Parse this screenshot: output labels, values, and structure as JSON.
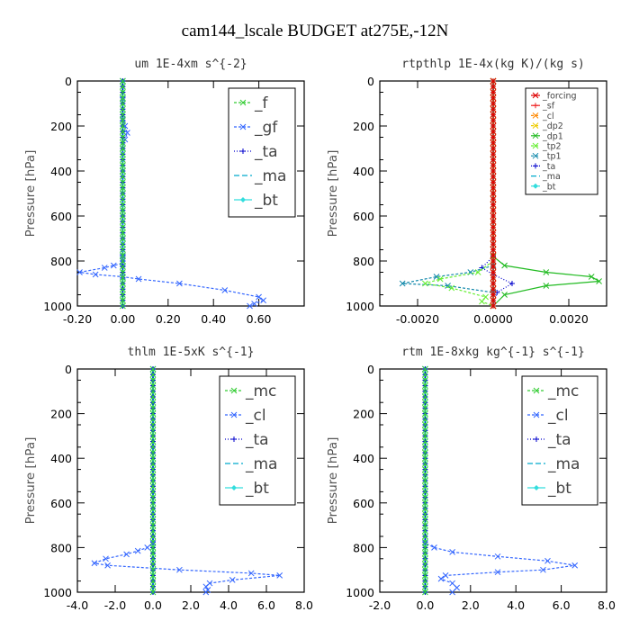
{
  "figure": {
    "title": "cam144_lscale  BUDGET at275E,-12N"
  },
  "chart_data": [
    {
      "type": "line",
      "title": "um  1E-4xm s^{-2}",
      "xlabel": "",
      "ylabel": "Pressure [hPa]",
      "xlim": [
        -0.2,
        0.8
      ],
      "ylim": [
        1000,
        0
      ],
      "xticks": [
        "-0.20",
        "0.00",
        "0.20",
        "0.40",
        "0.60"
      ],
      "xtick_values": [
        -0.2,
        0.0,
        0.2,
        0.4,
        0.6
      ],
      "yticks": [
        "0",
        "200",
        "400",
        "600",
        "800",
        "1000"
      ],
      "ytick_values": [
        0,
        200,
        400,
        600,
        800,
        1000
      ],
      "grid": false,
      "legend": "top-right",
      "legend_style": "big",
      "legend_width": 74,
      "series": [
        {
          "name": "_f",
          "color": "#33cc33",
          "marker": "x",
          "dash": "3,2",
          "x": [
            0,
            0
          ],
          "y": [
            0,
            1000
          ]
        },
        {
          "name": "_gf",
          "color": "#3366ff",
          "marker": "x",
          "dash": "3,2",
          "x": [
            0.0,
            0.0,
            0.0,
            0.0,
            0.01,
            0.02,
            0.01,
            0.0,
            0.0,
            0.0,
            0.0,
            0.0,
            0.0,
            0.0,
            0.0,
            0.0,
            0.0,
            -0.04,
            -0.08,
            -0.19,
            -0.12,
            0.0,
            0.07,
            0.25,
            0.45,
            0.6,
            0.62,
            0.58,
            0.56
          ],
          "y": [
            0,
            80,
            150,
            170,
            200,
            230,
            260,
            300,
            400,
            500,
            600,
            700,
            750,
            780,
            790,
            800,
            810,
            820,
            830,
            850,
            860,
            870,
            880,
            900,
            930,
            960,
            975,
            990,
            1000
          ]
        },
        {
          "name": "_ta",
          "color": "#0000cc",
          "marker": "+",
          "dash": "1,2",
          "x": [
            0,
            0
          ],
          "y": [
            0,
            1000
          ]
        },
        {
          "name": "_ma",
          "color": "#00aacc",
          "marker": "none",
          "dash": "6,3",
          "x": [
            0,
            0
          ],
          "y": [
            0,
            1000
          ]
        },
        {
          "name": "_bt",
          "color": "#33dddd",
          "marker": "diamond",
          "dash": "",
          "x": [
            0,
            0
          ],
          "y": [
            0,
            1000
          ]
        }
      ]
    },
    {
      "type": "line",
      "title": "rtpthlp  1E-4x(kg K)/(kg s)",
      "xlabel": "",
      "ylabel": "Pressure [hPa]",
      "xlim": [
        -0.003,
        0.003
      ],
      "ylim": [
        1000,
        0
      ],
      "xticks": [
        "-0.0020",
        "0.0000",
        "0.0020"
      ],
      "xtick_values": [
        -0.002,
        0.0,
        0.002
      ],
      "yticks": [
        "0",
        "200",
        "400",
        "600",
        "800",
        "1000"
      ],
      "ytick_values": [
        0,
        200,
        400,
        600,
        800,
        1000
      ],
      "grid": false,
      "legend": "top-right",
      "legend_style": "small",
      "legend_width": 80,
      "series": [
        {
          "name": "_forcing",
          "color": "#dd0000",
          "marker": "x",
          "dash": "",
          "x": [
            0,
            0
          ],
          "y": [
            0,
            1000
          ]
        },
        {
          "name": "_sf",
          "color": "#ee2222",
          "marker": "+",
          "dash": "",
          "x": [
            0,
            0
          ],
          "y": [
            0,
            1000
          ]
        },
        {
          "name": "_cl",
          "color": "#ff8800",
          "marker": "x",
          "dash": "3,2",
          "x": [
            0,
            0
          ],
          "y": [
            0,
            1000
          ]
        },
        {
          "name": "_dp2",
          "color": "#eecc00",
          "marker": "x",
          "dash": "3,2",
          "x": [
            0,
            0
          ],
          "y": [
            0,
            1000
          ]
        },
        {
          "name": "_dp1",
          "color": "#22bb22",
          "marker": "x",
          "dash": "",
          "x": [
            0.0,
            0.0,
            0.0,
            0.0003,
            0.0014,
            0.0026,
            0.0028,
            0.0014,
            0.0003,
            0.0
          ],
          "y": [
            0,
            500,
            780,
            820,
            850,
            870,
            890,
            910,
            950,
            1000
          ]
        },
        {
          "name": "_tp2",
          "color": "#66ee33",
          "marker": "x",
          "dash": "3,2",
          "x": [
            0.0,
            0.0,
            -0.0004,
            -0.0014,
            -0.0018,
            -0.0011,
            -0.0002,
            -0.0003,
            0.0
          ],
          "y": [
            0,
            800,
            850,
            880,
            900,
            920,
            960,
            980,
            1000
          ]
        },
        {
          "name": "_tp1",
          "color": "#1188aa",
          "marker": "x",
          "dash": "3,2",
          "x": [
            0.0,
            0.0,
            -0.0006,
            -0.0015,
            -0.0024,
            -0.0012,
            0.0,
            0.0
          ],
          "y": [
            0,
            820,
            850,
            870,
            900,
            910,
            940,
            1000
          ]
        },
        {
          "name": "_ta",
          "color": "#0000cc",
          "marker": "+",
          "dash": "1,2",
          "x": [
            0.0,
            0.0,
            -0.0003,
            0.0,
            0.0005,
            0.0001,
            0.0
          ],
          "y": [
            0,
            780,
            830,
            860,
            900,
            940,
            1000
          ]
        },
        {
          "name": "_ma",
          "color": "#00aacc",
          "marker": "none",
          "dash": "6,3",
          "x": [
            0,
            0
          ],
          "y": [
            0,
            1000
          ]
        },
        {
          "name": "_bt",
          "color": "#33dddd",
          "marker": "diamond",
          "dash": "",
          "x": [
            0,
            0
          ],
          "y": [
            0,
            1000
          ]
        }
      ]
    },
    {
      "type": "line",
      "title": "thlm  1E-5xK s^{-1}",
      "xlabel": "",
      "ylabel": "Pressure [hPa]",
      "xlim": [
        -4.0,
        8.0
      ],
      "ylim": [
        1000,
        0
      ],
      "xticks": [
        "-4.0",
        "-2.0",
        "0.0",
        "2.0",
        "4.0",
        "6.0",
        "8.0"
      ],
      "xtick_values": [
        -4,
        -2,
        0,
        2,
        4,
        6,
        8
      ],
      "yticks": [
        "0",
        "200",
        "400",
        "600",
        "800",
        "1000"
      ],
      "ytick_values": [
        0,
        200,
        400,
        600,
        800,
        1000
      ],
      "grid": false,
      "legend": "top-right",
      "legend_style": "big",
      "legend_width": 84,
      "series": [
        {
          "name": "_mc",
          "color": "#33cc33",
          "marker": "x",
          "dash": "3,2",
          "x": [
            0,
            0
          ],
          "y": [
            0,
            1000
          ]
        },
        {
          "name": "_cl",
          "color": "#3366ff",
          "marker": "x",
          "dash": "3,2",
          "x": [
            0.0,
            0.0,
            -0.3,
            -0.8,
            -1.4,
            -2.5,
            -3.1,
            -2.4,
            1.4,
            5.2,
            6.7,
            4.2,
            3.0,
            2.8,
            2.9,
            2.8
          ],
          "y": [
            0,
            780,
            800,
            815,
            830,
            850,
            870,
            880,
            900,
            915,
            925,
            945,
            960,
            975,
            990,
            1000
          ]
        },
        {
          "name": "_ta",
          "color": "#0000cc",
          "marker": "+",
          "dash": "1,2",
          "x": [
            0,
            0
          ],
          "y": [
            0,
            1000
          ]
        },
        {
          "name": "_ma",
          "color": "#00aacc",
          "marker": "none",
          "dash": "6,3",
          "x": [
            0,
            0
          ],
          "y": [
            0,
            1000
          ]
        },
        {
          "name": "_bt",
          "color": "#33dddd",
          "marker": "diamond",
          "dash": "",
          "x": [
            0,
            0
          ],
          "y": [
            0,
            1000
          ]
        }
      ]
    },
    {
      "type": "line",
      "title": "rtm  1E-8xkg kg^{-1} s^{-1}",
      "xlabel": "",
      "ylabel": "Pressure [hPa]",
      "xlim": [
        -2.0,
        8.0
      ],
      "ylim": [
        1000,
        0
      ],
      "xticks": [
        "-2.0",
        "0.0",
        "2.0",
        "4.0",
        "6.0",
        "8.0"
      ],
      "xtick_values": [
        -2,
        0,
        2,
        4,
        6,
        8
      ],
      "yticks": [
        "0",
        "200",
        "400",
        "600",
        "800",
        "1000"
      ],
      "ytick_values": [
        0,
        200,
        400,
        600,
        800,
        1000
      ],
      "grid": false,
      "legend": "top-right",
      "legend_style": "big",
      "legend_width": 84,
      "series": [
        {
          "name": "_mc",
          "color": "#33cc33",
          "marker": "x",
          "dash": "3,2",
          "x": [
            0,
            0
          ],
          "y": [
            0,
            1000
          ]
        },
        {
          "name": "_cl",
          "color": "#3366ff",
          "marker": "x",
          "dash": "3,2",
          "x": [
            0.0,
            0.0,
            0.4,
            1.2,
            3.2,
            5.4,
            6.6,
            5.2,
            3.2,
            0.9,
            0.7,
            1.2,
            1.4,
            1.2
          ],
          "y": [
            0,
            780,
            800,
            820,
            840,
            860,
            880,
            900,
            910,
            925,
            940,
            960,
            980,
            1000
          ]
        },
        {
          "name": "_ta",
          "color": "#0000cc",
          "marker": "+",
          "dash": "1,2",
          "x": [
            0,
            0
          ],
          "y": [
            0,
            1000
          ]
        },
        {
          "name": "_ma",
          "color": "#00aacc",
          "marker": "none",
          "dash": "6,3",
          "x": [
            0,
            0
          ],
          "y": [
            0,
            1000
          ]
        },
        {
          "name": "_bt",
          "color": "#33dddd",
          "marker": "diamond",
          "dash": "",
          "x": [
            0,
            0
          ],
          "y": [
            0,
            1000
          ]
        }
      ]
    }
  ]
}
